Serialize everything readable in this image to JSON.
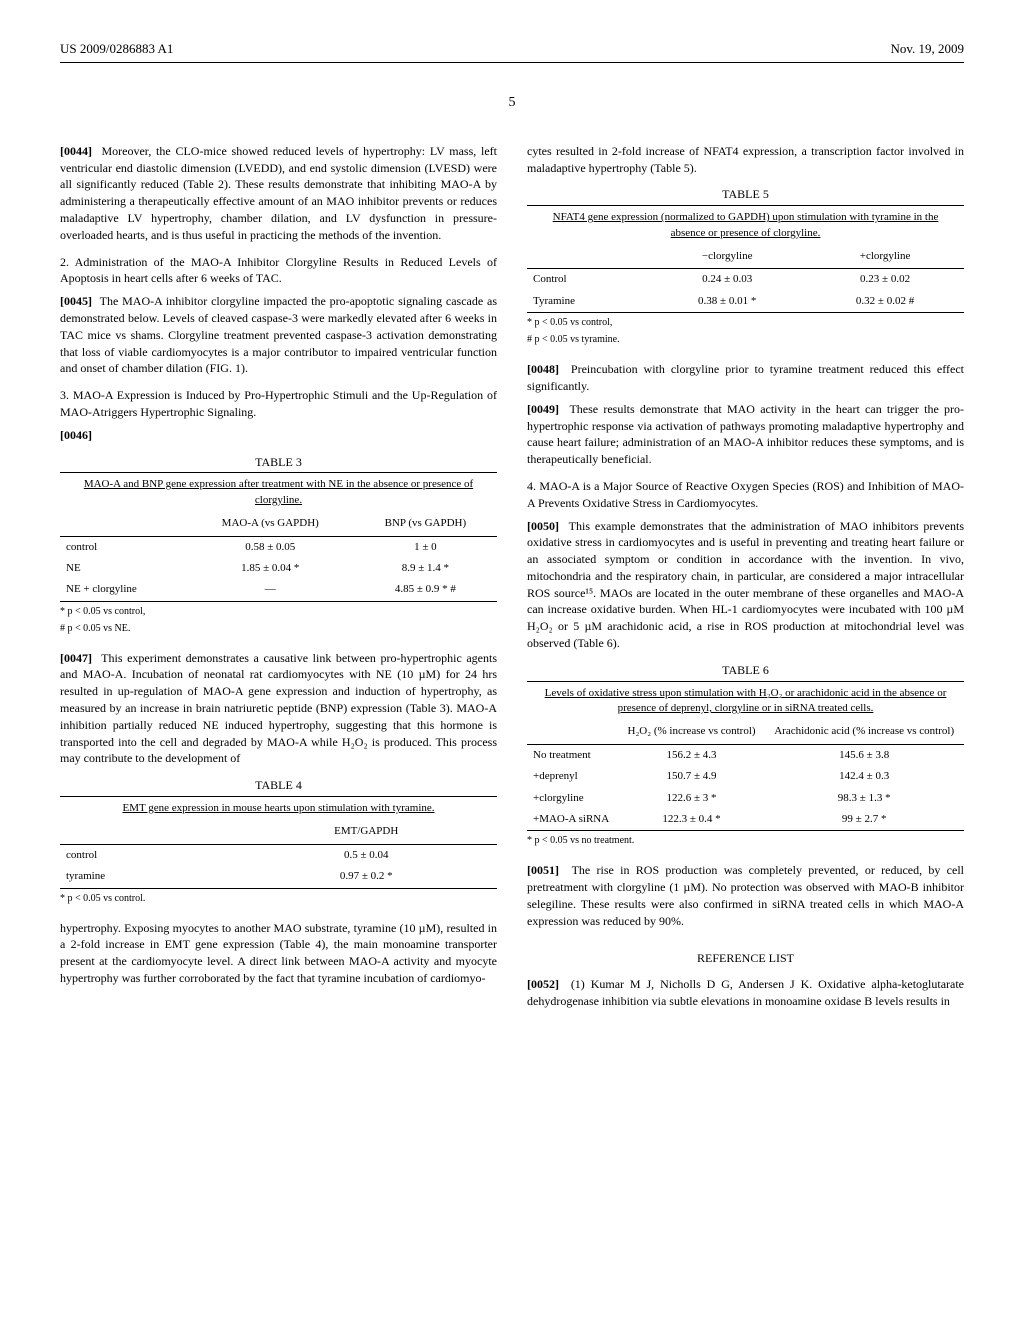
{
  "header": {
    "left": "US 2009/0286883 A1",
    "right": "Nov. 19, 2009"
  },
  "page_number": "5",
  "left_col": {
    "p1_num": "[0044]",
    "p1": "Moreover, the CLO-mice showed reduced levels of hypertrophy: LV mass, left ventricular end diastolic dimension (LVEDD), and end systolic dimension (LVESD) were all significantly reduced (Table 2). These results demonstrate that inhibiting MAO-A by administering a therapeutically effective amount of an MAO inhibitor prevents or reduces maladaptive LV hypertrophy, chamber dilation, and LV dysfunction in pressure-overloaded hearts, and is thus useful in practicing the methods of the invention.",
    "sec2": "2. Administration of the MAO-A Inhibitor Clorgyline Results in Reduced Levels of Apoptosis in heart cells after 6 weeks of TAC.",
    "p2_num": "[0045]",
    "p2": "The MAO-A inhibitor clorgyline impacted the pro-apoptotic signaling cascade as demonstrated below. Levels of cleaved caspase-3 were markedly elevated after 6 weeks in TAC mice vs shams. Clorgyline treatment prevented caspase-3 activation demonstrating that loss of viable cardiomyocytes is a major contributor to impaired ventricular function and onset of chamber dilation (FIG. 1).",
    "sec3": "3. MAO-A Expression is Induced by Pro-Hypertrophic Stimuli and the Up-Regulation of MAO-Atriggers Hypertrophic Signaling.",
    "p3_num": "[0046]",
    "table3": {
      "label": "TABLE 3",
      "caption": "MAO-A and BNP gene expression after treatment with NE in the absence or presence of clorgyline.",
      "headers": [
        "",
        "MAO-A (vs GAPDH)",
        "BNP (vs GAPDH)"
      ],
      "rows": [
        [
          "control",
          "0.58 ± 0.05",
          "1 ± 0"
        ],
        [
          "NE",
          "1.85 ± 0.04 *",
          "8.9 ± 1.4 *"
        ],
        [
          "NE + clorgyline",
          "—",
          "4.85 ± 0.9 * #"
        ]
      ],
      "footnotes": [
        "* p < 0.05 vs control,",
        "# p < 0.05 vs NE."
      ]
    },
    "p4_num": "[0047]",
    "p4": "This experiment demonstrates a causative link between pro-hypertrophic agents and MAO-A. Incubation of neonatal rat cardiomyocytes with NE (10 µM) for 24 hrs resulted in up-regulation of MAO-A gene expression and induction of hypertrophy, as measured by an increase in brain natriuretic peptide (BNP) expression (Table 3). MAO-A inhibition partially reduced NE induced hypertrophy, suggesting that this hormone is transported into the cell and degraded by MAO-A while H₂O₂ is produced. This process may contribute to the development of",
    "table4": {
      "label": "TABLE 4",
      "caption": "EMT gene expression in mouse hearts upon stimulation with tyramine.",
      "headers": [
        "",
        "EMT/GAPDH"
      ],
      "rows": [
        [
          "control",
          "0.5 ± 0.04"
        ],
        [
          "tyramine",
          "0.97 ± 0.2 *"
        ]
      ],
      "footnotes": [
        "* p < 0.05 vs control."
      ]
    },
    "p5": "hypertrophy. Exposing myocytes to another MAO substrate, tyramine (10 µM), resulted in a 2-fold increase in EMT gene expression (Table 4), the main monoamine transporter present at the cardiomyocyte level. A direct link between MAO-A activity and myocyte hypertrophy was further corroborated by the fact that tyramine incubation of cardiomyo-"
  },
  "right_col": {
    "p1": "cytes resulted in 2-fold increase of NFAT4 expression, a transcription factor involved in maladaptive hypertrophy (Table 5).",
    "table5": {
      "label": "TABLE 5",
      "caption": "NFAT4 gene expression (normalized to GAPDH) upon stimulation with tyramine in the absence or presence of clorgyline.",
      "headers": [
        "",
        "−clorgyline",
        "+clorgyline"
      ],
      "rows": [
        [
          "Control",
          "0.24 ± 0.03",
          "0.23 ± 0.02"
        ],
        [
          "Tyramine",
          "0.38 ± 0.01 *",
          "0.32 ± 0.02 #"
        ]
      ],
      "footnotes": [
        "* p < 0.05 vs control,",
        "# p < 0.05 vs tyramine."
      ]
    },
    "p2_num": "[0048]",
    "p2": "Preincubation with clorgyline prior to tyramine treatment reduced this effect significantly.",
    "p3_num": "[0049]",
    "p3": "These results demonstrate that MAO activity in the heart can trigger the pro-hypertrophic response via activation of pathways promoting maladaptive hypertrophy and cause heart failure; administration of an MAO-A inhibitor reduces these symptoms, and is therapeutically beneficial.",
    "sec4": "4. MAO-A is a Major Source of Reactive Oxygen Species (ROS) and Inhibition of MAO-A Prevents Oxidative Stress in Cardiomyocytes.",
    "p4_num": "[0050]",
    "p4": "This example demonstrates that the administration of MAO inhibitors prevents oxidative stress in cardiomyocytes and is useful in preventing and treating heart failure or an associated symptom or condition in accordance with the invention. In vivo, mitochondria and the respiratory chain, in particular, are considered a major intracellular ROS source¹⁵. MAOs are located in the outer membrane of these organelles and MAO-A can increase oxidative burden. When HL-1 cardiomyocytes were incubated with 100 µM H₂O₂ or 5 µM arachidonic acid, a rise in ROS production at mitochondrial level was observed (Table 6).",
    "table6": {
      "label": "TABLE 6",
      "caption": "Levels of oxidative stress upon stimulation with H₂O₂ or arachidonic acid in the absence or presence of deprenyl, clorgyline or in siRNA treated cells.",
      "headers": [
        "",
        "H₂O₂ (% increase vs control)",
        "Arachidonic acid (% increase vs control)"
      ],
      "rows": [
        [
          "No treatment",
          "156.2 ± 4.3",
          "145.6 ± 3.8"
        ],
        [
          "+deprenyl",
          "150.7 ± 4.9",
          "142.4 ± 0.3"
        ],
        [
          "+clorgyline",
          "122.6 ± 3 *",
          "98.3 ± 1.3 *"
        ],
        [
          "+MAO-A siRNA",
          "122.3 ± 0.4 *",
          "99 ± 2.7 *"
        ]
      ],
      "footnotes": [
        "* p < 0.05 vs no treatment."
      ]
    },
    "p5_num": "[0051]",
    "p5": "The rise in ROS production was completely prevented, or reduced, by cell pretreatment with clorgyline (1 µM). No protection was observed with MAO-B inhibitor selegiline. These results were also confirmed in siRNA treated cells in which MAO-A expression was reduced by 90%.",
    "ref_header": "REFERENCE LIST",
    "p6_num": "[0052]",
    "p6": "(1) Kumar M J, Nicholls D G, Andersen J K. Oxidative alpha-ketoglutarate dehydrogenase inhibition via subtle elevations in monoamine oxidase B levels results in"
  }
}
